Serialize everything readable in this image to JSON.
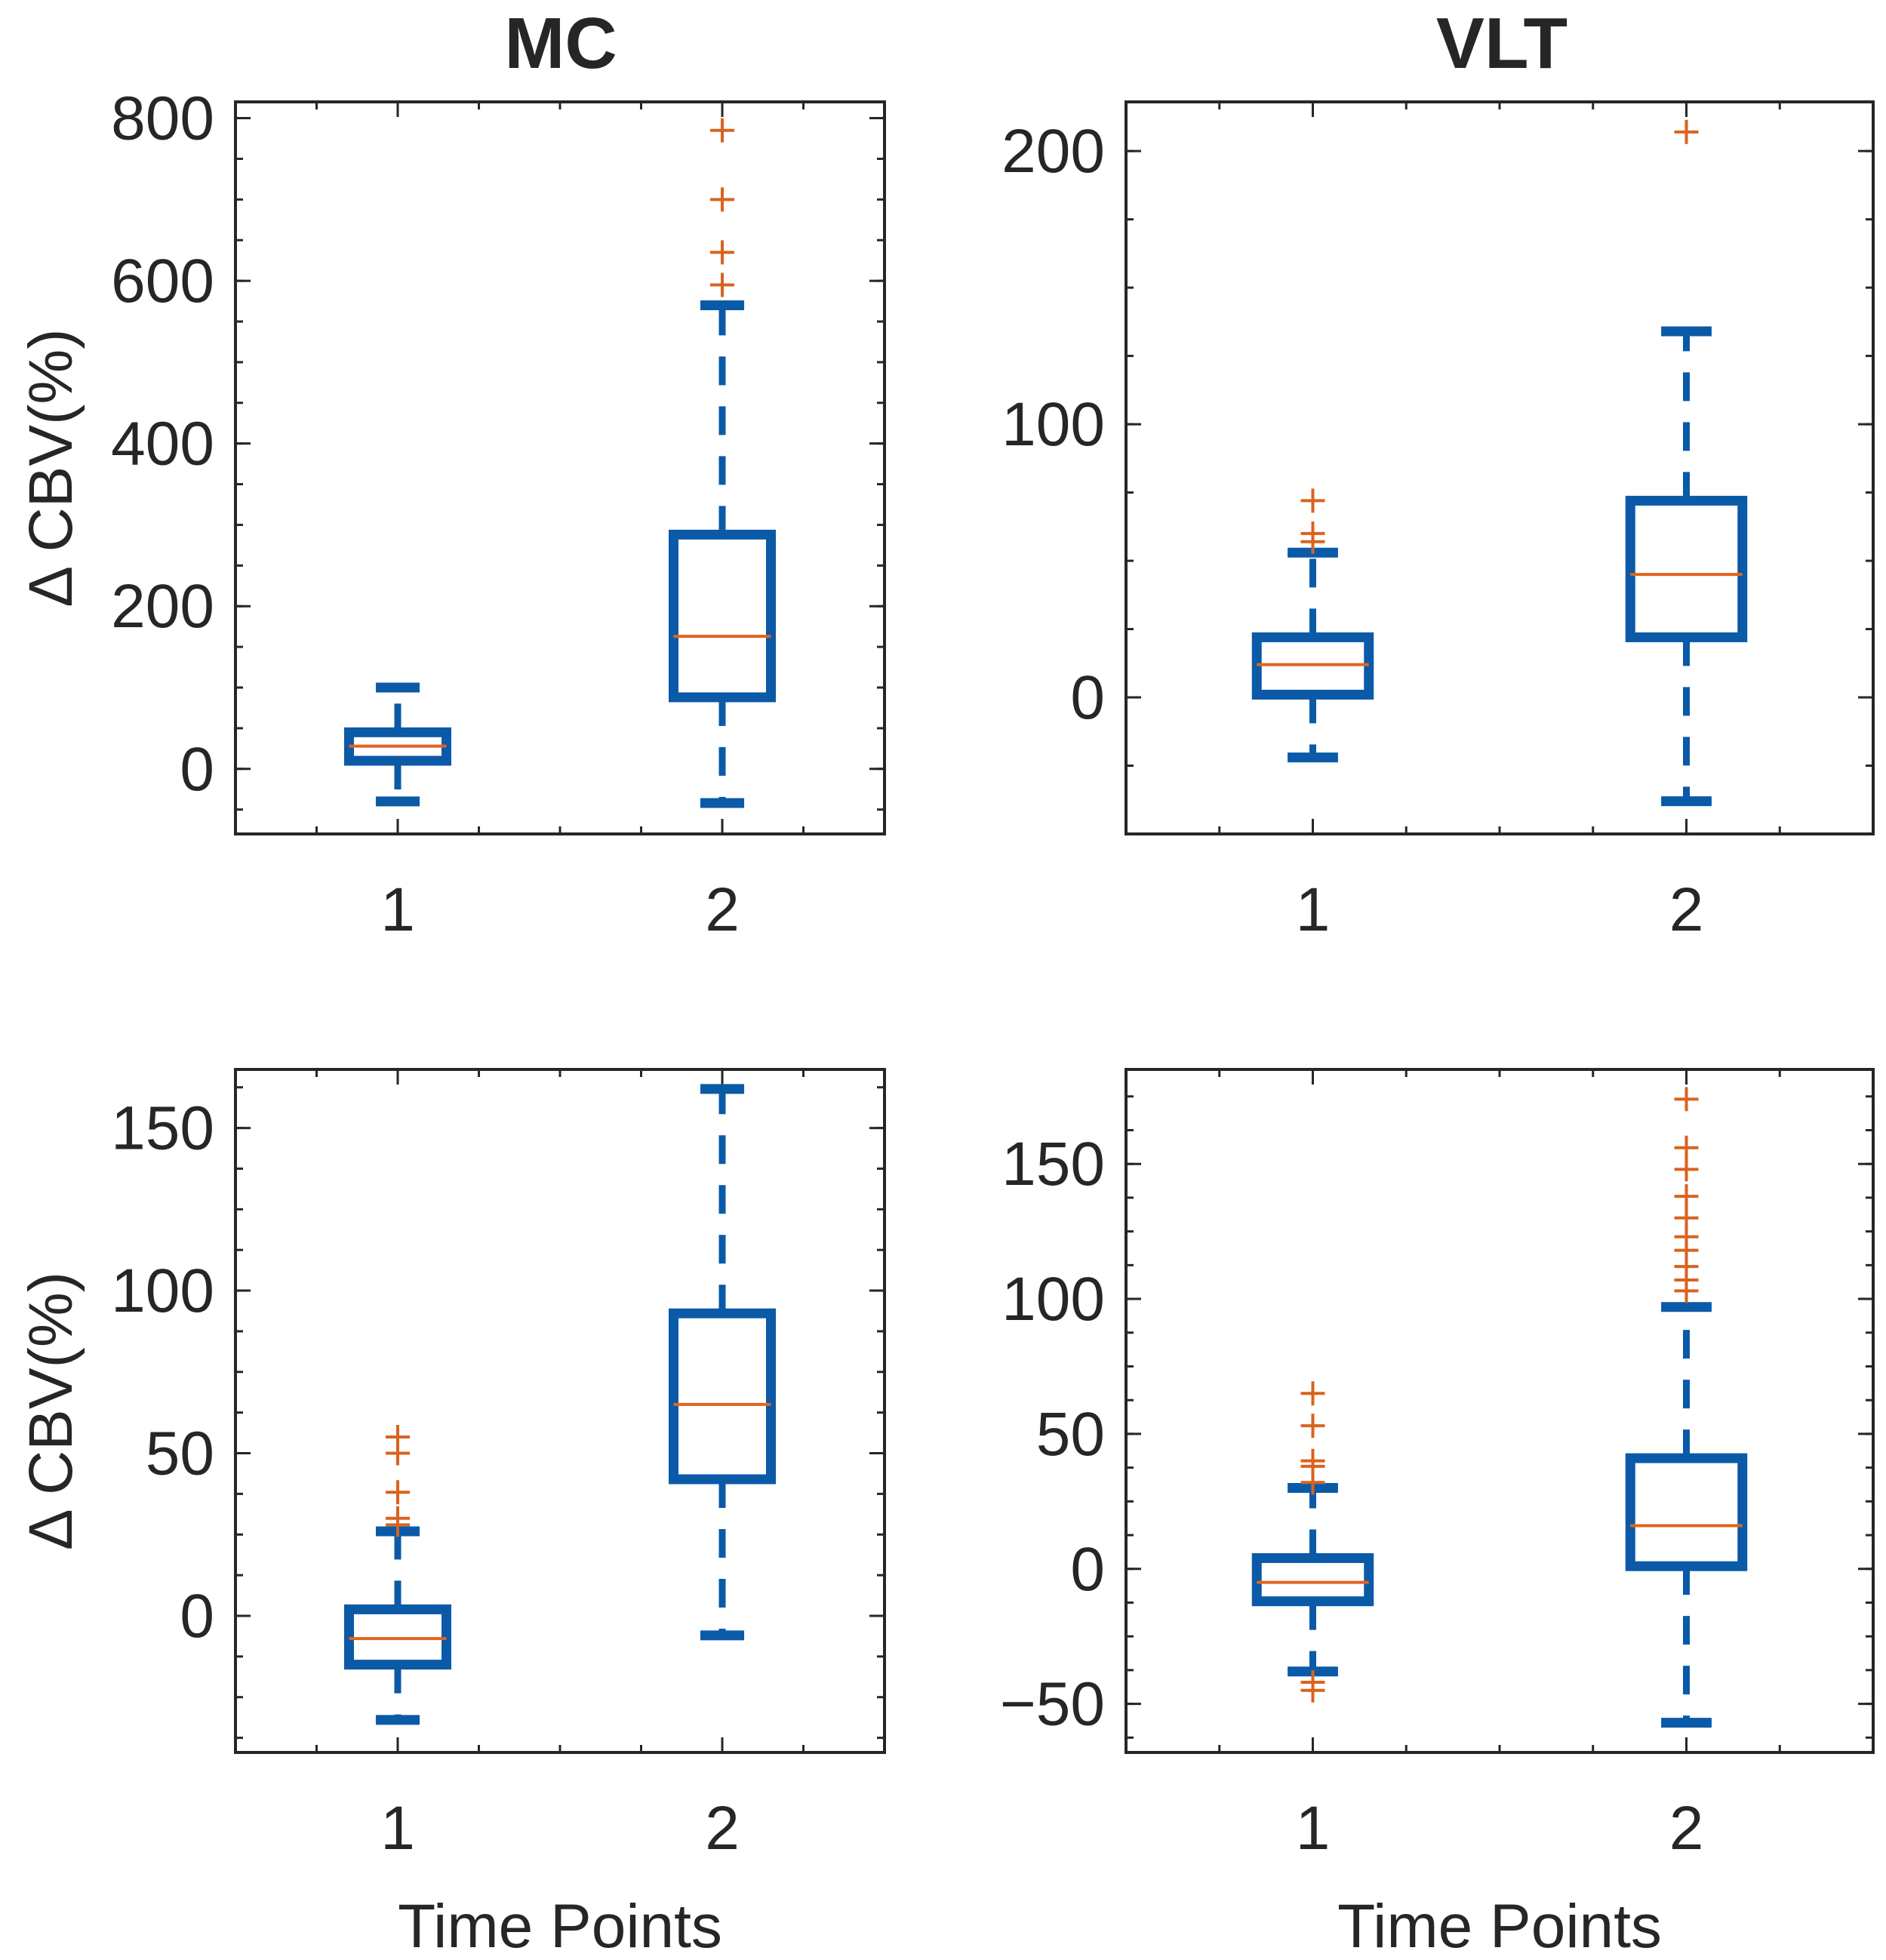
{
  "figure": {
    "column_titles": [
      "MC",
      "VLT"
    ]
  },
  "chart_data": [
    {
      "type": "box",
      "panel": "top-left",
      "title": "MC",
      "ylabel": "Δ CBV(%)",
      "xlabel": "",
      "ylim": [
        -80,
        820
      ],
      "xlim": [
        0.5,
        2.5
      ],
      "yticks": [
        0,
        200,
        400,
        600,
        800
      ],
      "categories": [
        "1",
        "2"
      ],
      "boxes": [
        {
          "category": "1",
          "min": -40,
          "q1": 10,
          "median": 28,
          "q3": 45,
          "max": 100,
          "outliers": []
        },
        {
          "category": "2",
          "min": -42,
          "q1": 88,
          "median": 163,
          "q3": 288,
          "max": 570,
          "outliers": [
            595,
            635,
            700,
            785
          ]
        }
      ]
    },
    {
      "type": "box",
      "panel": "top-right",
      "title": "VLT",
      "ylabel": "",
      "xlabel": "",
      "ylim": [
        -50,
        218
      ],
      "xlim": [
        0.5,
        2.5
      ],
      "yticks": [
        0,
        100,
        200
      ],
      "categories": [
        "1",
        "2"
      ],
      "boxes": [
        {
          "category": "1",
          "min": -22,
          "q1": 1,
          "median": 12,
          "q3": 22,
          "max": 53,
          "outliers": [
            57,
            60,
            72
          ]
        },
        {
          "category": "2",
          "min": -38,
          "q1": 22,
          "median": 45,
          "q3": 72,
          "max": 134,
          "outliers": [
            207
          ]
        }
      ]
    },
    {
      "type": "box",
      "panel": "bottom-left",
      "title": "",
      "ylabel": "Δ CBV(%)",
      "xlabel": "Time Points",
      "ylim": [
        -42,
        168
      ],
      "xlim": [
        0.5,
        2.5
      ],
      "yticks": [
        0,
        50,
        100,
        150
      ],
      "categories": [
        "1",
        "2"
      ],
      "boxes": [
        {
          "category": "1",
          "min": -32,
          "q1": -15,
          "median": -7,
          "q3": 2,
          "max": 26,
          "outliers": [
            28,
            30,
            38,
            50,
            55
          ]
        },
        {
          "category": "2",
          "min": -6,
          "q1": 42,
          "median": 65,
          "q3": 93,
          "max": 162,
          "outliers": []
        }
      ]
    },
    {
      "type": "box",
      "panel": "bottom-right",
      "title": "",
      "ylabel": "",
      "xlabel": "Time Points",
      "ylim": [
        -68,
        185
      ],
      "xlim": [
        0.5,
        2.5
      ],
      "yticks": [
        -50,
        0,
        50,
        100,
        150
      ],
      "categories": [
        "1",
        "2"
      ],
      "boxes": [
        {
          "category": "1",
          "min": -38,
          "q1": -12,
          "median": -5,
          "q3": 4,
          "max": 30,
          "outliers": [
            -45,
            -42,
            32,
            38,
            40,
            53,
            65
          ]
        },
        {
          "category": "2",
          "min": -57,
          "q1": 1,
          "median": 16,
          "q3": 41,
          "max": 97,
          "outliers": [
            103,
            107,
            112,
            118,
            123,
            130,
            138,
            148,
            156,
            174
          ]
        }
      ]
    }
  ]
}
